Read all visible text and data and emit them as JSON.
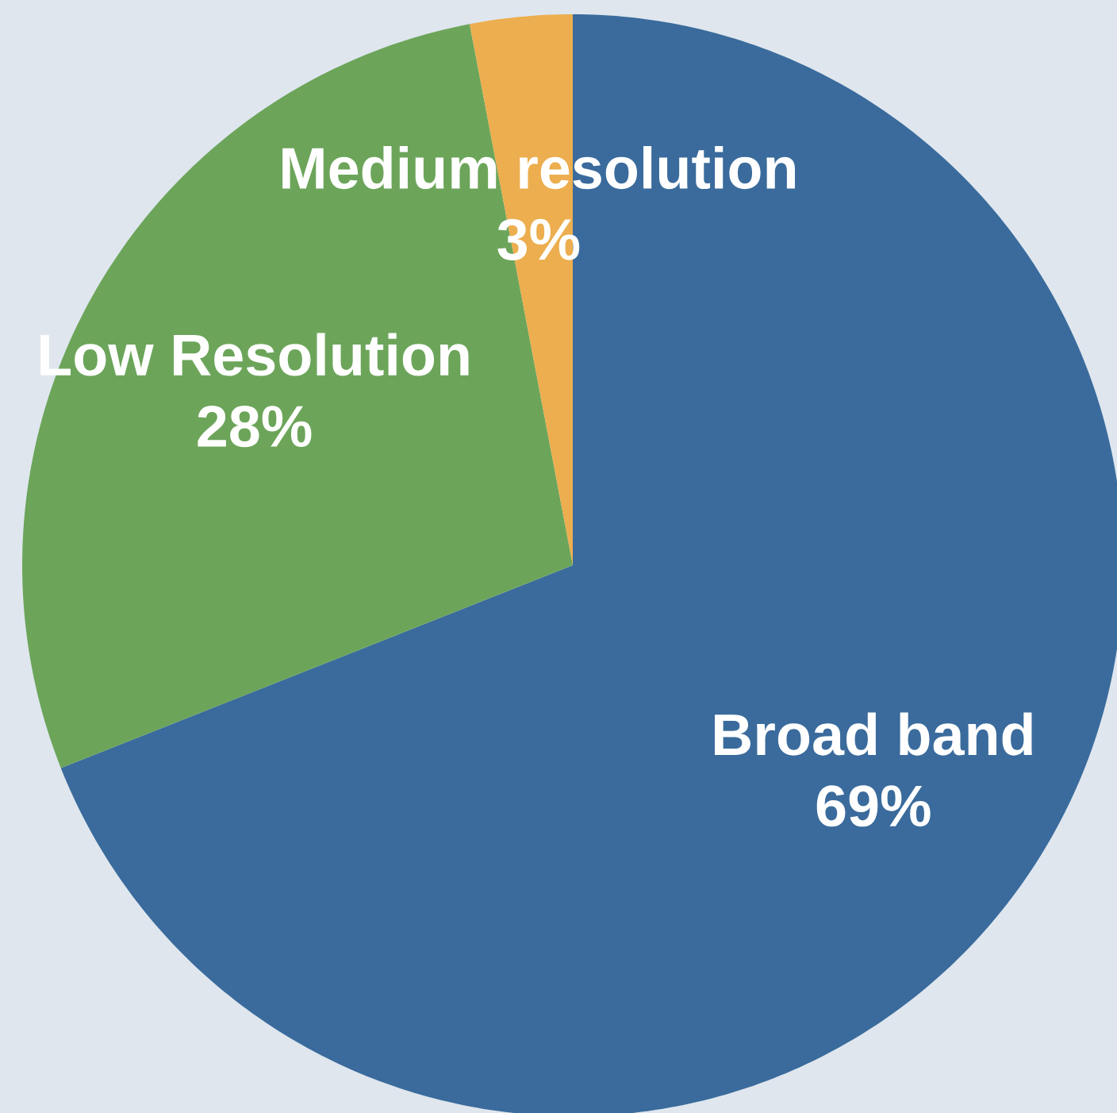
{
  "chart_data": {
    "type": "pie",
    "categories": [
      "Broad band",
      "Low Resolution",
      "Medium resolution"
    ],
    "values": [
      69,
      28,
      3
    ],
    "colors": [
      "#3a6b9c",
      "#6ca55a",
      "#ecae4e"
    ],
    "value_labels": [
      "69%",
      "28%",
      "3%"
    ]
  }
}
